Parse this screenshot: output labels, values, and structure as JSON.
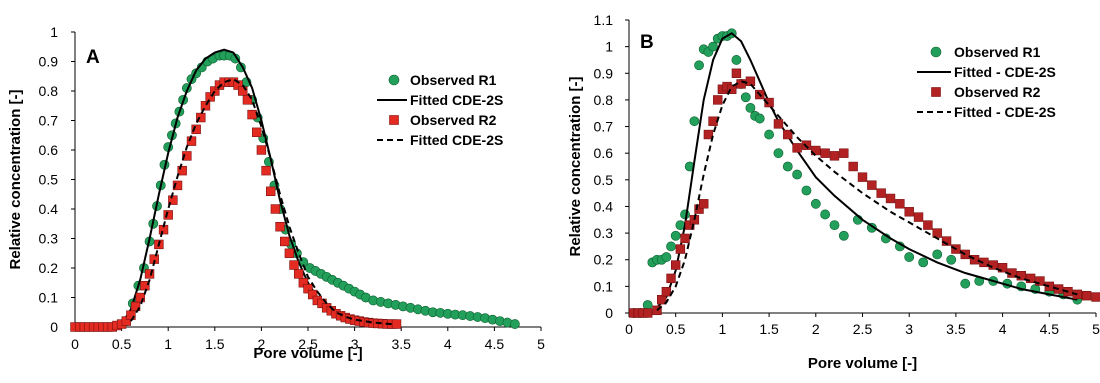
{
  "figure": {
    "panels": [
      "A",
      "B"
    ]
  },
  "chart_data": [
    {
      "type": "scatter",
      "panel_label": "A",
      "xlabel": "Pore volume [-]",
      "ylabel": "Relative concentration [-]",
      "xlim": [
        0,
        5
      ],
      "ylim": [
        0,
        1
      ],
      "xticks": [
        "0",
        "0.5",
        "1",
        "1.5",
        "2",
        "2.5",
        "3",
        "3.5",
        "4",
        "4.5",
        "5"
      ],
      "yticks": [
        "0",
        "0.1",
        "0.2",
        "0.3",
        "0.4",
        "0.5",
        "0.6",
        "0.7",
        "0.8",
        "0.9",
        "1"
      ],
      "grid": false,
      "legend_position": "top-right",
      "series": [
        {
          "name": "Observed R1",
          "kind": "points",
          "marker": "circle",
          "color": "#22A05B",
          "x": [
            0.55,
            0.62,
            0.68,
            0.74,
            0.8,
            0.84,
            0.88,
            0.92,
            0.96,
            1.0,
            1.04,
            1.08,
            1.12,
            1.16,
            1.2,
            1.25,
            1.3,
            1.36,
            1.42,
            1.48,
            1.55,
            1.6,
            1.66,
            1.72,
            1.78,
            1.84,
            1.9,
            1.96,
            2.02,
            2.08,
            2.14,
            2.2,
            2.26,
            2.32,
            2.38,
            2.45,
            2.52,
            2.58,
            2.64,
            2.7,
            2.76,
            2.82,
            2.88,
            2.94,
            3.0,
            3.06,
            3.12,
            3.2,
            3.28,
            3.36,
            3.44,
            3.52,
            3.6,
            3.68,
            3.76,
            3.84,
            3.92,
            4.0,
            4.08,
            4.16,
            4.24,
            4.32,
            4.4,
            4.48,
            4.56,
            4.64,
            4.72
          ],
          "y": [
            0.02,
            0.08,
            0.14,
            0.2,
            0.29,
            0.35,
            0.41,
            0.48,
            0.55,
            0.61,
            0.65,
            0.69,
            0.73,
            0.77,
            0.81,
            0.84,
            0.86,
            0.88,
            0.9,
            0.91,
            0.92,
            0.92,
            0.92,
            0.91,
            0.88,
            0.83,
            0.77,
            0.71,
            0.64,
            0.56,
            0.48,
            0.4,
            0.33,
            0.28,
            0.25,
            0.22,
            0.2,
            0.19,
            0.18,
            0.17,
            0.16,
            0.15,
            0.14,
            0.13,
            0.12,
            0.11,
            0.1,
            0.09,
            0.085,
            0.08,
            0.075,
            0.07,
            0.065,
            0.06,
            0.055,
            0.05,
            0.048,
            0.045,
            0.042,
            0.04,
            0.037,
            0.034,
            0.03,
            0.025,
            0.02,
            0.015,
            0.01
          ]
        },
        {
          "name": "Fitted CDE-2S",
          "kind": "line",
          "dash": "solid",
          "color": "#000000",
          "x": [
            0.5,
            0.6,
            0.7,
            0.8,
            0.9,
            1.0,
            1.1,
            1.2,
            1.3,
            1.4,
            1.5,
            1.6,
            1.7,
            1.8,
            1.9,
            2.0,
            2.1,
            2.2,
            2.3,
            2.4,
            2.5,
            2.6,
            2.7,
            2.8,
            2.9,
            3.0
          ],
          "y": [
            0.01,
            0.06,
            0.16,
            0.3,
            0.45,
            0.59,
            0.71,
            0.8,
            0.87,
            0.91,
            0.93,
            0.94,
            0.93,
            0.88,
            0.81,
            0.7,
            0.57,
            0.43,
            0.31,
            0.22,
            0.15,
            0.1,
            0.07,
            0.04,
            0.025,
            0.015
          ]
        },
        {
          "name": "Observed R2",
          "kind": "points",
          "marker": "square",
          "color": "#E32B22",
          "x": [
            0.0,
            0.05,
            0.1,
            0.15,
            0.2,
            0.25,
            0.3,
            0.35,
            0.4,
            0.45,
            0.5,
            0.55,
            0.6,
            0.65,
            0.7,
            0.75,
            0.8,
            0.85,
            0.9,
            0.95,
            1.0,
            1.05,
            1.1,
            1.15,
            1.2,
            1.25,
            1.3,
            1.35,
            1.4,
            1.45,
            1.5,
            1.55,
            1.6,
            1.65,
            1.7,
            1.75,
            1.8,
            1.85,
            1.9,
            1.95,
            2.0,
            2.05,
            2.1,
            2.15,
            2.2,
            2.25,
            2.3,
            2.35,
            2.4,
            2.45,
            2.5,
            2.55,
            2.6,
            2.65,
            2.7,
            2.75,
            2.8,
            2.85,
            2.9,
            2.95,
            3.0,
            3.05,
            3.1,
            3.15,
            3.2,
            3.25,
            3.3,
            3.35,
            3.4,
            3.45
          ],
          "y": [
            0.0,
            0.0,
            0.0,
            0.0,
            0.0,
            0.0,
            0.0,
            0.0,
            0.0,
            0.005,
            0.01,
            0.02,
            0.04,
            0.07,
            0.1,
            0.14,
            0.18,
            0.23,
            0.28,
            0.33,
            0.38,
            0.43,
            0.48,
            0.53,
            0.58,
            0.63,
            0.67,
            0.71,
            0.75,
            0.78,
            0.8,
            0.82,
            0.83,
            0.83,
            0.83,
            0.82,
            0.8,
            0.77,
            0.72,
            0.66,
            0.6,
            0.53,
            0.46,
            0.4,
            0.34,
            0.29,
            0.25,
            0.21,
            0.18,
            0.15,
            0.13,
            0.11,
            0.09,
            0.08,
            0.065,
            0.055,
            0.045,
            0.038,
            0.032,
            0.027,
            0.023,
            0.02,
            0.017,
            0.015,
            0.013,
            0.012,
            0.011,
            0.01,
            0.01,
            0.01
          ]
        },
        {
          "name": "Fitted CDE-2S",
          "kind": "line",
          "dash": "dashed",
          "color": "#000000",
          "x": [
            0.6,
            0.7,
            0.8,
            0.9,
            1.0,
            1.1,
            1.2,
            1.3,
            1.4,
            1.5,
            1.6,
            1.7,
            1.8,
            1.9,
            2.0,
            2.1,
            2.2,
            2.3,
            2.4,
            2.5,
            2.6,
            2.7,
            2.8,
            2.9,
            3.0,
            3.2,
            3.4
          ],
          "y": [
            0.02,
            0.07,
            0.16,
            0.28,
            0.4,
            0.51,
            0.61,
            0.69,
            0.75,
            0.8,
            0.83,
            0.84,
            0.82,
            0.77,
            0.68,
            0.57,
            0.45,
            0.34,
            0.25,
            0.17,
            0.12,
            0.08,
            0.05,
            0.035,
            0.025,
            0.015,
            0.01
          ]
        }
      ]
    },
    {
      "type": "scatter",
      "panel_label": "B",
      "xlabel": "Pore volume [-]",
      "ylabel": "Relative concentration [-]",
      "xlim": [
        0,
        5
      ],
      "ylim": [
        0,
        1.1
      ],
      "xticks": [
        "0",
        "0.5",
        "1",
        "1.5",
        "2",
        "2.5",
        "3",
        "3.5",
        "4",
        "4.5",
        "5"
      ],
      "yticks": [
        "0",
        "0.1",
        "0.2",
        "0.3",
        "0.4",
        "0.5",
        "0.6",
        "0.7",
        "0.8",
        "0.9",
        "1",
        "1.1"
      ],
      "grid": false,
      "legend_position": "top-right",
      "series": [
        {
          "name": "Observed R1",
          "kind": "points",
          "marker": "circle",
          "color": "#22A05B",
          "x": [
            0.05,
            0.12,
            0.2,
            0.25,
            0.3,
            0.35,
            0.4,
            0.45,
            0.5,
            0.55,
            0.6,
            0.65,
            0.7,
            0.75,
            0.8,
            0.85,
            0.9,
            0.95,
            1.0,
            1.05,
            1.1,
            1.15,
            1.2,
            1.25,
            1.3,
            1.35,
            1.4,
            1.5,
            1.6,
            1.7,
            1.8,
            1.9,
            2.0,
            2.1,
            2.2,
            2.3,
            2.45,
            2.6,
            2.75,
            2.9,
            3.0,
            3.15,
            3.3,
            3.45,
            3.6,
            3.75,
            3.9,
            4.05,
            4.2,
            4.35,
            4.5,
            4.65,
            4.8
          ],
          "y": [
            0.0,
            0.0,
            0.03,
            0.19,
            0.2,
            0.2,
            0.21,
            0.25,
            0.29,
            0.33,
            0.37,
            0.55,
            0.72,
            0.93,
            0.99,
            0.98,
            1.0,
            1.03,
            1.04,
            1.04,
            1.05,
            0.95,
            0.86,
            0.81,
            0.77,
            0.74,
            0.73,
            0.67,
            0.6,
            0.55,
            0.52,
            0.46,
            0.41,
            0.37,
            0.33,
            0.29,
            0.35,
            0.32,
            0.28,
            0.25,
            0.21,
            0.19,
            0.22,
            0.2,
            0.11,
            0.12,
            0.12,
            0.11,
            0.1,
            0.09,
            0.08,
            0.07,
            0.05
          ]
        },
        {
          "name": "Fitted - CDE-2S",
          "kind": "line",
          "dash": "solid",
          "color": "#000000",
          "x": [
            0.3,
            0.4,
            0.5,
            0.6,
            0.7,
            0.8,
            0.9,
            1.0,
            1.1,
            1.2,
            1.3,
            1.4,
            1.5,
            1.6,
            1.8,
            2.0,
            2.2,
            2.5,
            2.8,
            3.0,
            3.3,
            3.6,
            3.9,
            4.2,
            4.5,
            4.8
          ],
          "y": [
            0.02,
            0.06,
            0.16,
            0.33,
            0.57,
            0.8,
            0.95,
            1.03,
            1.05,
            1.02,
            0.95,
            0.87,
            0.79,
            0.72,
            0.61,
            0.51,
            0.44,
            0.35,
            0.28,
            0.24,
            0.19,
            0.15,
            0.12,
            0.09,
            0.07,
            0.05
          ]
        },
        {
          "name": "Observed R2",
          "kind": "points",
          "marker": "square",
          "color": "#B22222",
          "x": [
            0.05,
            0.1,
            0.15,
            0.2,
            0.3,
            0.35,
            0.4,
            0.45,
            0.5,
            0.55,
            0.6,
            0.65,
            0.7,
            0.75,
            0.8,
            0.85,
            0.9,
            0.95,
            1.0,
            1.05,
            1.1,
            1.15,
            1.2,
            1.3,
            1.4,
            1.5,
            1.6,
            1.7,
            1.8,
            1.9,
            2.0,
            2.1,
            2.2,
            2.3,
            2.4,
            2.5,
            2.6,
            2.7,
            2.8,
            2.9,
            3.0,
            3.1,
            3.2,
            3.3,
            3.4,
            3.5,
            3.6,
            3.7,
            3.8,
            3.9,
            4.0,
            4.1,
            4.2,
            4.3,
            4.4,
            4.5,
            4.6,
            4.7,
            4.8,
            4.9,
            5.0
          ],
          "y": [
            0.0,
            0.0,
            0.0,
            0.0,
            0.01,
            0.05,
            0.08,
            0.13,
            0.18,
            0.24,
            0.28,
            0.33,
            0.35,
            0.39,
            0.41,
            0.67,
            0.72,
            0.8,
            0.84,
            0.85,
            0.84,
            0.9,
            0.86,
            0.87,
            0.82,
            0.79,
            0.71,
            0.67,
            0.62,
            0.63,
            0.61,
            0.6,
            0.59,
            0.6,
            0.55,
            0.51,
            0.48,
            0.45,
            0.43,
            0.41,
            0.38,
            0.36,
            0.33,
            0.3,
            0.27,
            0.24,
            0.22,
            0.2,
            0.19,
            0.18,
            0.17,
            0.15,
            0.14,
            0.13,
            0.12,
            0.1,
            0.09,
            0.08,
            0.07,
            0.065,
            0.06
          ]
        },
        {
          "name": "Fitted - CDE-2S",
          "kind": "line",
          "dash": "dashed",
          "color": "#000000",
          "x": [
            0.3,
            0.4,
            0.5,
            0.6,
            0.7,
            0.8,
            0.9,
            1.0,
            1.1,
            1.2,
            1.3,
            1.4,
            1.5,
            1.6,
            1.8,
            2.0,
            2.2,
            2.5,
            2.8,
            3.0,
            3.3,
            3.6,
            3.9,
            4.2,
            4.5,
            4.8
          ],
          "y": [
            0.01,
            0.04,
            0.1,
            0.2,
            0.35,
            0.52,
            0.67,
            0.78,
            0.85,
            0.87,
            0.86,
            0.82,
            0.78,
            0.74,
            0.66,
            0.59,
            0.53,
            0.45,
            0.38,
            0.34,
            0.28,
            0.22,
            0.17,
            0.13,
            0.1,
            0.07
          ]
        }
      ]
    }
  ]
}
